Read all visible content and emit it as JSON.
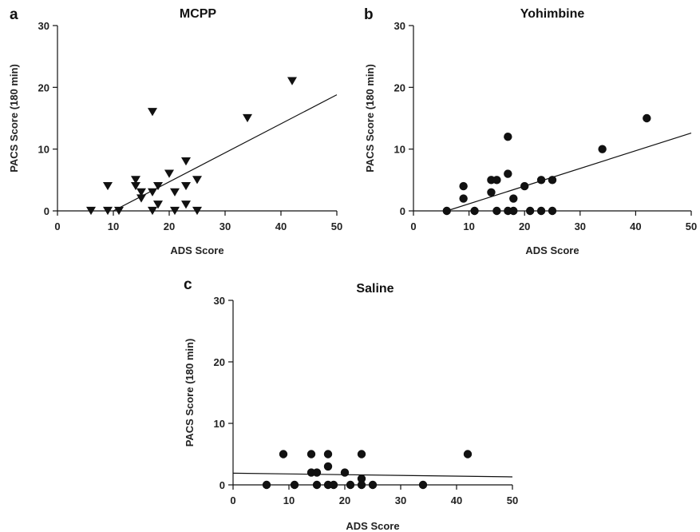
{
  "chart_data": [
    {
      "panel": "a",
      "type": "scatter",
      "title": "MCPP",
      "xlabel": "ADS Score",
      "ylabel": "PACS Score (180 min)",
      "xlim": [
        0,
        50
      ],
      "ylim": [
        0,
        30
      ],
      "xticks": [
        "0",
        "10",
        "20",
        "30",
        "40",
        "50"
      ],
      "yticks": [
        "0",
        "10",
        "20",
        "30"
      ],
      "marker": "triangle-down",
      "grid": false,
      "points": [
        {
          "x": 6,
          "y": 0
        },
        {
          "x": 9,
          "y": 0
        },
        {
          "x": 9,
          "y": 4
        },
        {
          "x": 11,
          "y": 0
        },
        {
          "x": 14,
          "y": 5
        },
        {
          "x": 14,
          "y": 4
        },
        {
          "x": 15,
          "y": 3
        },
        {
          "x": 15,
          "y": 2
        },
        {
          "x": 17,
          "y": 16
        },
        {
          "x": 17,
          "y": 3
        },
        {
          "x": 17,
          "y": 0
        },
        {
          "x": 18,
          "y": 4
        },
        {
          "x": 18,
          "y": 1
        },
        {
          "x": 20,
          "y": 6
        },
        {
          "x": 21,
          "y": 3
        },
        {
          "x": 21,
          "y": 0
        },
        {
          "x": 23,
          "y": 8
        },
        {
          "x": 23,
          "y": 4
        },
        {
          "x": 23,
          "y": 1
        },
        {
          "x": 25,
          "y": 5
        },
        {
          "x": 25,
          "y": 0
        },
        {
          "x": 34,
          "y": 15
        },
        {
          "x": 42,
          "y": 21
        }
      ],
      "fit": {
        "x": [
          10,
          50
        ],
        "y": [
          0,
          18.8
        ]
      }
    },
    {
      "panel": "b",
      "type": "scatter",
      "title": "Yohimbine",
      "xlabel": "ADS Score",
      "ylabel": "PACS Score (180 min)",
      "xlim": [
        0,
        50
      ],
      "ylim": [
        0,
        30
      ],
      "xticks": [
        "0",
        "10",
        "20",
        "30",
        "40",
        "50"
      ],
      "yticks": [
        "0",
        "10",
        "20",
        "30"
      ],
      "marker": "circle",
      "grid": false,
      "points": [
        {
          "x": 6,
          "y": 0
        },
        {
          "x": 9,
          "y": 4
        },
        {
          "x": 9,
          "y": 2
        },
        {
          "x": 11,
          "y": 0
        },
        {
          "x": 14,
          "y": 5
        },
        {
          "x": 14,
          "y": 3
        },
        {
          "x": 15,
          "y": 5
        },
        {
          "x": 15,
          "y": 0
        },
        {
          "x": 17,
          "y": 12
        },
        {
          "x": 17,
          "y": 6
        },
        {
          "x": 17,
          "y": 0
        },
        {
          "x": 18,
          "y": 2
        },
        {
          "x": 18,
          "y": 0
        },
        {
          "x": 20,
          "y": 4
        },
        {
          "x": 21,
          "y": 0
        },
        {
          "x": 23,
          "y": 5
        },
        {
          "x": 23,
          "y": 0
        },
        {
          "x": 25,
          "y": 5
        },
        {
          "x": 25,
          "y": 0
        },
        {
          "x": 34,
          "y": 10
        },
        {
          "x": 42,
          "y": 15
        }
      ],
      "fit": {
        "x": [
          6,
          50
        ],
        "y": [
          0,
          12.6
        ]
      }
    },
    {
      "panel": "c",
      "type": "scatter",
      "title": "Saline",
      "xlabel": "ADS Score",
      "ylabel": "PACS Score (180 min)",
      "xlim": [
        0,
        50
      ],
      "ylim": [
        0,
        30
      ],
      "xticks": [
        "0",
        "10",
        "20",
        "30",
        "40",
        "50"
      ],
      "yticks": [
        "0",
        "10",
        "20",
        "30"
      ],
      "marker": "circle",
      "grid": false,
      "points": [
        {
          "x": 6,
          "y": 0
        },
        {
          "x": 9,
          "y": 5
        },
        {
          "x": 11,
          "y": 0
        },
        {
          "x": 14,
          "y": 5
        },
        {
          "x": 14,
          "y": 2
        },
        {
          "x": 15,
          "y": 2
        },
        {
          "x": 15,
          "y": 0
        },
        {
          "x": 17,
          "y": 5
        },
        {
          "x": 17,
          "y": 3
        },
        {
          "x": 17,
          "y": 0
        },
        {
          "x": 18,
          "y": 0
        },
        {
          "x": 20,
          "y": 2
        },
        {
          "x": 21,
          "y": 0
        },
        {
          "x": 23,
          "y": 5
        },
        {
          "x": 23,
          "y": 1
        },
        {
          "x": 23,
          "y": 0
        },
        {
          "x": 25,
          "y": 0
        },
        {
          "x": 34,
          "y": 0
        },
        {
          "x": 42,
          "y": 5
        }
      ],
      "fit": {
        "x": [
          0,
          50
        ],
        "y": [
          1.9,
          1.3
        ]
      }
    }
  ]
}
